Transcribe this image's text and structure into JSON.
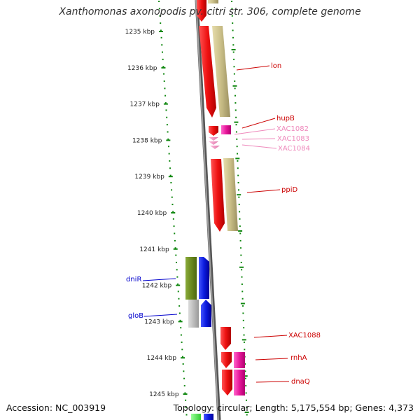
{
  "title": "Xanthomonas axonopodis pv. citri str. 306, complete genome",
  "footer": {
    "accession": "Accession: NC_003919",
    "summary": "Topology: circular; Length: 5,175,554 bp; Genes: 4,373"
  },
  "colors": {
    "red_gene": "#ee1111",
    "olive_gene": "#c8bd86",
    "pink_gene": "#e8179a",
    "light_pink_gene": "#ee88bb",
    "dark_green_gene": "#6b8a1f",
    "blue_gene": "#0b1bde",
    "gray_gene": "#bcbcbc",
    "label_red": "#cc0000",
    "label_pink": "#ee88bb",
    "label_blue": "#0000cc",
    "tick_green": "#118811",
    "backbone": "#888888"
  },
  "ticks": [
    {
      "value": "1235 kbp"
    },
    {
      "value": "1236 kbp"
    },
    {
      "value": "1237 kbp"
    },
    {
      "value": "1238 kbp"
    },
    {
      "value": "1239 kbp"
    },
    {
      "value": "1240 kbp"
    },
    {
      "value": "1241 kbp"
    },
    {
      "value": "1242 kbp"
    },
    {
      "value": "1243 kbp"
    },
    {
      "value": "1244 kbp"
    },
    {
      "value": "1245 kbp"
    }
  ],
  "gene_labels": {
    "lon": "lon",
    "hupB": "hupB",
    "XAC1082": "XAC1082",
    "XAC1083": "XAC1083",
    "XAC1084": "XAC1084",
    "ppiD": "ppiD",
    "dniR": "dniR",
    "gloB": "gloB",
    "XAC1088": "XAC1088",
    "rnhA": "rnhA",
    "dnaQ": "dnaQ"
  }
}
